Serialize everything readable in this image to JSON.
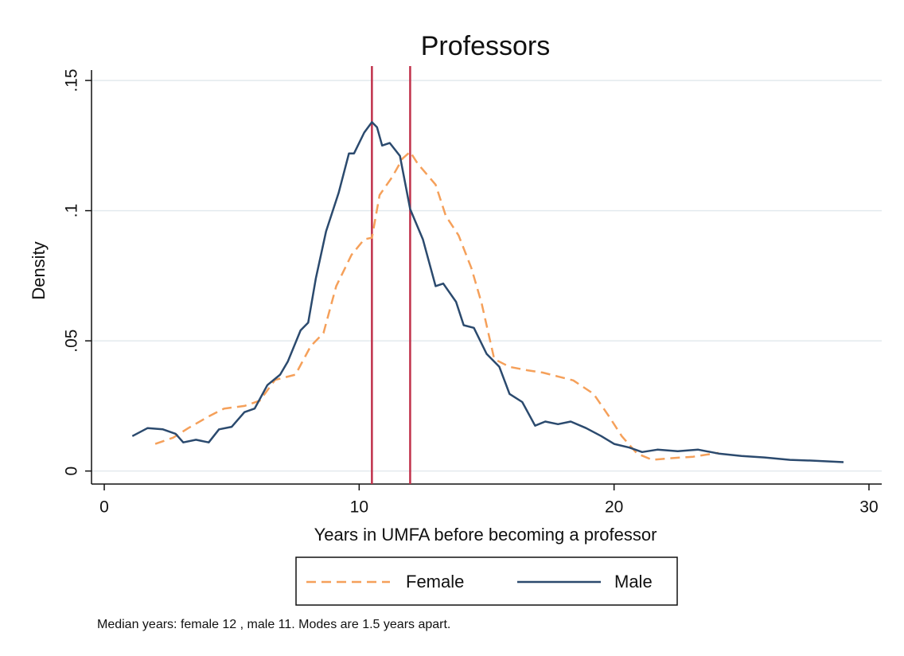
{
  "chart_data": {
    "type": "line",
    "title": "Professors",
    "xlabel": "Years in UMFA before becoming a professor",
    "ylabel": "Density",
    "note": "Median years: female 12 , male 11. Modes are 1.5 years apart.",
    "xlim": [
      -0.5,
      30.5
    ],
    "xticks": [
      0,
      10,
      20,
      30
    ],
    "ylim": [
      -0.005,
      0.154
    ],
    "yticks": [
      0,
      {
        "value": 0.05,
        "label": ".05"
      },
      {
        "value": 0.1,
        "label": ".1"
      },
      {
        "value": 0.15,
        "label": ".15"
      }
    ],
    "grid": true,
    "vlines": [
      10.5,
      12
    ],
    "vline_color": "#c0304a",
    "series": [
      {
        "name": "Female",
        "color": "#f5a05a",
        "dash": true,
        "x": [
          2.0,
          2.7,
          3.3,
          4.1,
          4.7,
          5.5,
          6.1,
          6.7,
          7.5,
          8.1,
          8.6,
          9.1,
          9.7,
          10.2,
          10.5,
          10.8,
          11.3,
          11.7,
          12.0,
          12.3,
          13.0,
          13.4,
          13.9,
          14.4,
          14.8,
          15.3,
          15.9,
          16.6,
          17.2,
          17.8,
          18.4,
          19.2,
          19.8,
          20.3,
          20.9,
          21.5,
          22.2,
          23.1,
          24.1
        ],
        "values": [
          0.0104,
          0.0128,
          0.0165,
          0.021,
          0.024,
          0.025,
          0.027,
          0.035,
          0.037,
          0.048,
          0.053,
          0.071,
          0.083,
          0.089,
          0.0896,
          0.106,
          0.113,
          0.12,
          0.1226,
          0.118,
          0.11,
          0.098,
          0.0905,
          0.078,
          0.0646,
          0.043,
          0.04,
          0.0387,
          0.0378,
          0.0363,
          0.0348,
          0.0296,
          0.021,
          0.0134,
          0.0067,
          0.0043,
          0.0049,
          0.0055,
          0.007
        ]
      },
      {
        "name": "Male",
        "color": "#2b4a6e",
        "dash": false,
        "x": [
          1.1,
          1.7,
          2.3,
          2.8,
          3.1,
          3.6,
          4.1,
          4.5,
          5.0,
          5.5,
          5.9,
          6.4,
          6.9,
          7.2,
          7.7,
          8.0,
          8.3,
          8.7,
          9.2,
          9.6,
          9.8,
          10.2,
          10.5,
          10.7,
          10.9,
          11.2,
          11.6,
          12.0,
          12.5,
          13.0,
          13.3,
          13.8,
          14.1,
          14.5,
          15.0,
          15.5,
          15.9,
          16.4,
          16.9,
          17.3,
          17.8,
          18.3,
          18.9,
          19.5,
          20.0,
          20.6,
          21.1,
          21.7,
          22.5,
          23.3,
          24.1,
          25.0,
          25.9,
          26.9,
          27.8,
          29.0
        ],
        "values": [
          0.0134,
          0.0165,
          0.016,
          0.0143,
          0.011,
          0.012,
          0.011,
          0.016,
          0.017,
          0.0226,
          0.024,
          0.033,
          0.037,
          0.042,
          0.054,
          0.057,
          0.074,
          0.092,
          0.107,
          0.122,
          0.122,
          0.13,
          0.134,
          0.132,
          0.125,
          0.126,
          0.121,
          0.1006,
          0.089,
          0.071,
          0.072,
          0.065,
          0.056,
          0.055,
          0.045,
          0.04,
          0.0296,
          0.0265,
          0.0174,
          0.019,
          0.018,
          0.019,
          0.0165,
          0.0134,
          0.0104,
          0.009,
          0.0073,
          0.0082,
          0.0076,
          0.0082,
          0.0067,
          0.0058,
          0.0052,
          0.0043,
          0.004,
          0.0034
        ]
      }
    ]
  }
}
